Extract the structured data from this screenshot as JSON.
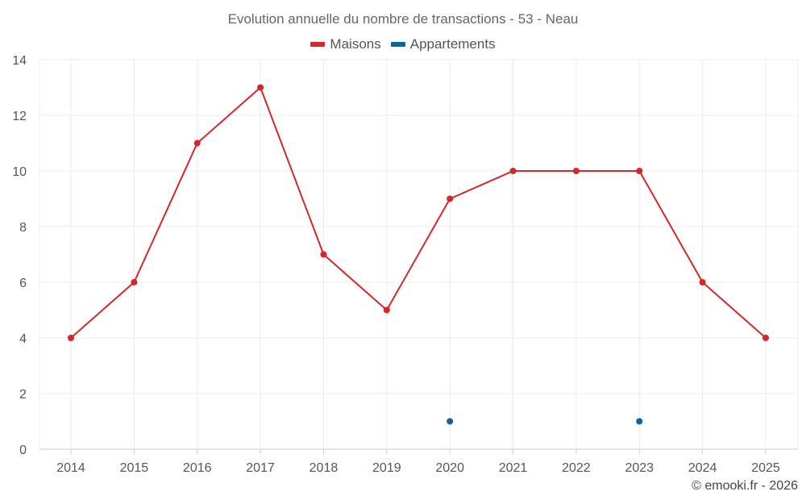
{
  "chart_data": {
    "type": "line",
    "title": "Evolution annuelle du nombre de transactions - 53 - Neau",
    "categories": [
      "2014",
      "2015",
      "2016",
      "2017",
      "2018",
      "2019",
      "2020",
      "2021",
      "2022",
      "2023",
      "2024",
      "2025"
    ],
    "series": [
      {
        "name": "Maisons",
        "color": "#d62728",
        "values": [
          4,
          6,
          11,
          13,
          7,
          5,
          9,
          10,
          10,
          10,
          6,
          4
        ]
      },
      {
        "name": "Appartements",
        "color": "#0a64a0",
        "values": [
          null,
          null,
          null,
          null,
          null,
          null,
          1,
          null,
          null,
          1,
          null,
          null
        ]
      }
    ],
    "ylim": [
      0,
      14
    ],
    "yticks": [
      0,
      2,
      4,
      6,
      8,
      10,
      12,
      14
    ],
    "grid": true,
    "legend_position": "top-center"
  },
  "credit": "© emooki.fr - 2026"
}
